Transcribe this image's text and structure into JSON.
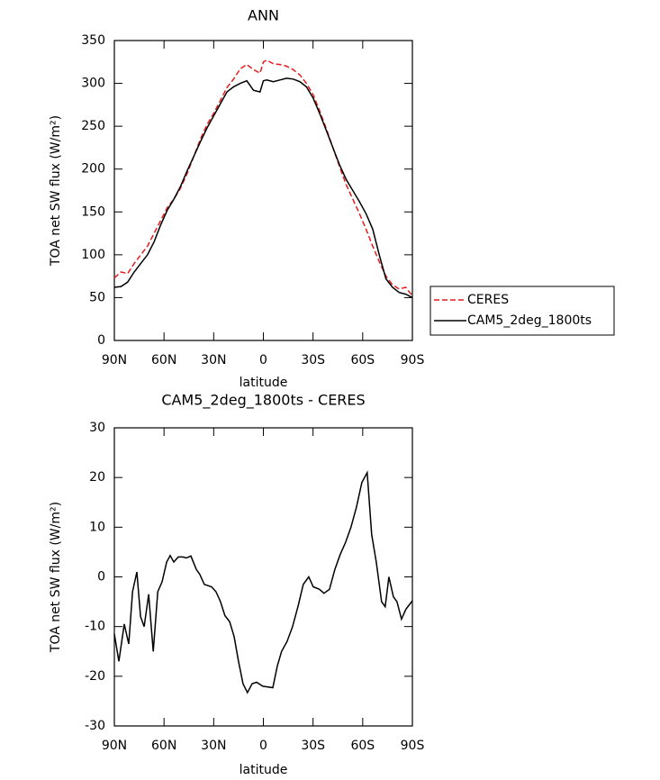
{
  "chart_data": [
    {
      "type": "line",
      "title": "ANN",
      "xlabel": "latitude",
      "ylabel": "TOA net SW flux (W/m²)",
      "x": [
        90,
        86,
        82,
        78,
        74,
        70,
        66,
        62,
        58,
        54,
        50,
        46,
        42,
        38,
        34,
        30,
        26,
        22,
        18,
        14,
        10,
        6,
        2,
        0,
        -2,
        -6,
        -10,
        -14,
        -18,
        -22,
        -26,
        -30,
        -34,
        -38,
        -42,
        -46,
        -50,
        -54,
        -58,
        -62,
        -66,
        -70,
        -74,
        -78,
        -82,
        -86,
        -90
      ],
      "series": [
        {
          "name": "CERES",
          "color": "#e8191c",
          "dash": "dashed",
          "values": [
            73,
            80,
            78,
            90,
            100,
            110,
            125,
            140,
            155,
            165,
            178,
            195,
            215,
            235,
            252,
            265,
            280,
            295,
            305,
            317,
            322,
            316,
            312,
            325,
            327,
            323,
            322,
            320,
            316,
            310,
            300,
            287,
            268,
            247,
            225,
            203,
            182,
            165,
            148,
            130,
            110,
            92,
            75,
            65,
            60,
            62,
            52
          ]
        },
        {
          "name": "CAM5_2deg_1800ts",
          "color": "#000000",
          "dash": "solid",
          "values": [
            62,
            63,
            68,
            80,
            90,
            100,
            115,
            135,
            152,
            165,
            180,
            198,
            215,
            232,
            248,
            262,
            276,
            290,
            296,
            300,
            303,
            292,
            290,
            303,
            304,
            302,
            304,
            306,
            305,
            302,
            296,
            283,
            265,
            245,
            225,
            205,
            188,
            175,
            162,
            148,
            130,
            100,
            72,
            62,
            56,
            54,
            50
          ]
        }
      ],
      "xlim": [
        90,
        -90
      ],
      "xticks": [
        {
          "value": 90,
          "label": "90N"
        },
        {
          "value": 60,
          "label": "60N"
        },
        {
          "value": 30,
          "label": "30N"
        },
        0,
        {
          "value": -30,
          "label": "30S"
        },
        {
          "value": -60,
          "label": "60S"
        },
        {
          "value": -90,
          "label": "90S"
        }
      ],
      "ylim": [
        0,
        350
      ],
      "yticks": [
        0,
        50,
        100,
        150,
        200,
        250,
        300,
        350
      ],
      "legend": "right"
    },
    {
      "type": "line",
      "title": "CAM5_2deg_1800ts - CERES",
      "xlabel": "latitude",
      "ylabel": "TOA net SW flux (W/m²)",
      "x": [
        90,
        87.3,
        84,
        81.3,
        79,
        76.4,
        74.2,
        72,
        69.3,
        66.5,
        63.8,
        61.2,
        58.4,
        56.3,
        54.1,
        51.4,
        48.6,
        46.5,
        43.8,
        40.5,
        38.4,
        35.7,
        31.3,
        28.6,
        25.9,
        23.2,
        20.4,
        17.7,
        15,
        12.3,
        9.6,
        6.8,
        4.1,
        0.3,
        -5.7,
        -8.4,
        -11,
        -14.3,
        -17.6,
        -20.9,
        -24.1,
        -27.4,
        -30.1,
        -33.9,
        -36.6,
        -39.9,
        -43.2,
        -46.4,
        -49.7,
        -52.9,
        -56.2,
        -59.5,
        -62.7,
        -65.4,
        -68.2,
        -71.4,
        -73.6,
        -75.8,
        -78.5,
        -80.7,
        -83.4,
        -86.1,
        -90
      ],
      "series": [
        {
          "color": "#000000",
          "dash": "solid",
          "values": [
            -11.5,
            -17,
            -9.5,
            -13.5,
            -3,
            1,
            -8,
            -10,
            -3.5,
            -15,
            -3,
            -1,
            3,
            4.3,
            3,
            4,
            4,
            3.8,
            4.2,
            1.5,
            0.5,
            -1.5,
            -2,
            -3,
            -5,
            -7.8,
            -9,
            -12,
            -17,
            -21.5,
            -23.3,
            -21.5,
            -21.2,
            -22,
            -22.3,
            -18,
            -15,
            -13,
            -10,
            -6,
            -1.5,
            0,
            -2,
            -2.5,
            -3.3,
            -2.5,
            1.5,
            4.5,
            7,
            10,
            14,
            19,
            21,
            8.5,
            3,
            -5,
            -6,
            0,
            -4,
            -5,
            -8.5,
            -6.5,
            -4.8
          ]
        }
      ],
      "xlim": [
        90,
        -90
      ],
      "xticks": [
        {
          "value": 90,
          "label": "90N"
        },
        {
          "value": 60,
          "label": "60N"
        },
        {
          "value": 30,
          "label": "30N"
        },
        0,
        {
          "value": -30,
          "label": "30S"
        },
        {
          "value": -60,
          "label": "60S"
        },
        {
          "value": -90,
          "label": "90S"
        }
      ],
      "ylim": [
        -30,
        30
      ],
      "yticks": [
        -30,
        -20,
        -10,
        0,
        10,
        20,
        30
      ]
    }
  ]
}
